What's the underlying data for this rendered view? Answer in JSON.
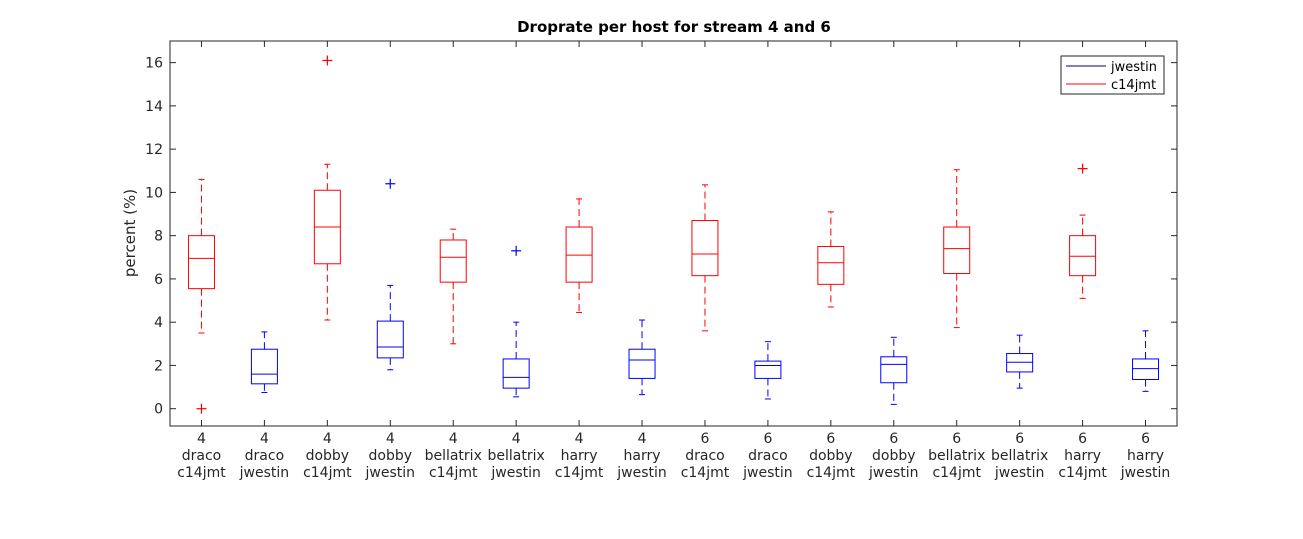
{
  "chart_data": {
    "type": "boxplot",
    "title": "Droprate per host for stream 4 and 6",
    "ylabel": "percent (%)",
    "xlabel": "",
    "ylim": [
      -0.8,
      17
    ],
    "yticks": [
      0,
      2,
      4,
      6,
      8,
      10,
      12,
      14,
      16
    ],
    "grid": false,
    "legend": {
      "position": "top-right",
      "entries": [
        {
          "name": "jwestin",
          "color": "#00007f"
        },
        {
          "name": "c14jmt",
          "color": "#ff0000"
        }
      ]
    },
    "series_colors": {
      "c14jmt": "#ff0000",
      "jwestin": "#0000ff"
    },
    "boxes": [
      {
        "labels": [
          "4",
          "draco",
          "c14jmt"
        ],
        "series": "c14jmt",
        "whisker_low": 3.5,
        "q1": 5.55,
        "median": 6.95,
        "q3": 8.0,
        "whisker_high": 10.6,
        "outliers": [
          0.0
        ]
      },
      {
        "labels": [
          "4",
          "draco",
          "jwestin"
        ],
        "series": "jwestin",
        "whisker_low": 0.75,
        "q1": 1.15,
        "median": 1.6,
        "q3": 2.75,
        "whisker_high": 3.55,
        "outliers": []
      },
      {
        "labels": [
          "4",
          "dobby",
          "c14jmt"
        ],
        "series": "c14jmt",
        "whisker_low": 4.1,
        "q1": 6.7,
        "median": 8.4,
        "q3": 10.1,
        "whisker_high": 11.3,
        "outliers": [
          16.1
        ]
      },
      {
        "labels": [
          "4",
          "dobby",
          "jwestin"
        ],
        "series": "jwestin",
        "whisker_low": 1.8,
        "q1": 2.35,
        "median": 2.85,
        "q3": 4.05,
        "whisker_high": 5.7,
        "outliers": [
          10.4
        ]
      },
      {
        "labels": [
          "4",
          "bellatrix",
          "c14jmt"
        ],
        "series": "c14jmt",
        "whisker_low": 3.0,
        "q1": 5.85,
        "median": 7.0,
        "q3": 7.8,
        "whisker_high": 8.3,
        "outliers": []
      },
      {
        "labels": [
          "4",
          "bellatrix",
          "jwestin"
        ],
        "series": "jwestin",
        "whisker_low": 0.55,
        "q1": 0.95,
        "median": 1.45,
        "q3": 2.3,
        "whisker_high": 4.0,
        "outliers": [
          7.3
        ]
      },
      {
        "labels": [
          "4",
          "harry",
          "c14jmt"
        ],
        "series": "c14jmt",
        "whisker_low": 4.45,
        "q1": 5.85,
        "median": 7.1,
        "q3": 8.4,
        "whisker_high": 9.7,
        "outliers": []
      },
      {
        "labels": [
          "4",
          "harry",
          "jwestin"
        ],
        "series": "jwestin",
        "whisker_low": 0.65,
        "q1": 1.4,
        "median": 2.25,
        "q3": 2.75,
        "whisker_high": 4.1,
        "outliers": []
      },
      {
        "labels": [
          "6",
          "draco",
          "c14jmt"
        ],
        "series": "c14jmt",
        "whisker_low": 3.6,
        "q1": 6.15,
        "median": 7.15,
        "q3": 8.7,
        "whisker_high": 10.35,
        "outliers": []
      },
      {
        "labels": [
          "6",
          "draco",
          "jwestin"
        ],
        "series": "jwestin",
        "whisker_low": 0.45,
        "q1": 1.4,
        "median": 2.0,
        "q3": 2.2,
        "whisker_high": 3.1,
        "outliers": []
      },
      {
        "labels": [
          "6",
          "dobby",
          "c14jmt"
        ],
        "series": "c14jmt",
        "whisker_low": 4.7,
        "q1": 5.75,
        "median": 6.75,
        "q3": 7.5,
        "whisker_high": 9.1,
        "outliers": []
      },
      {
        "labels": [
          "6",
          "dobby",
          "jwestin"
        ],
        "series": "jwestin",
        "whisker_low": 0.2,
        "q1": 1.2,
        "median": 2.05,
        "q3": 2.4,
        "whisker_high": 3.3,
        "outliers": []
      },
      {
        "labels": [
          "6",
          "bellatrix",
          "c14jmt"
        ],
        "series": "c14jmt",
        "whisker_low": 3.75,
        "q1": 6.25,
        "median": 7.4,
        "q3": 8.4,
        "whisker_high": 11.05,
        "outliers": []
      },
      {
        "labels": [
          "6",
          "bellatrix",
          "jwestin"
        ],
        "series": "jwestin",
        "whisker_low": 0.95,
        "q1": 1.7,
        "median": 2.15,
        "q3": 2.55,
        "whisker_high": 3.4,
        "outliers": []
      },
      {
        "labels": [
          "6",
          "harry",
          "c14jmt"
        ],
        "series": "c14jmt",
        "whisker_low": 5.1,
        "q1": 6.15,
        "median": 7.05,
        "q3": 8.0,
        "whisker_high": 8.95,
        "outliers": [
          11.1
        ]
      },
      {
        "labels": [
          "6",
          "harry",
          "jwestin"
        ],
        "series": "jwestin",
        "whisker_low": 0.8,
        "q1": 1.35,
        "median": 1.85,
        "q3": 2.3,
        "whisker_high": 3.6,
        "outliers": []
      }
    ]
  }
}
